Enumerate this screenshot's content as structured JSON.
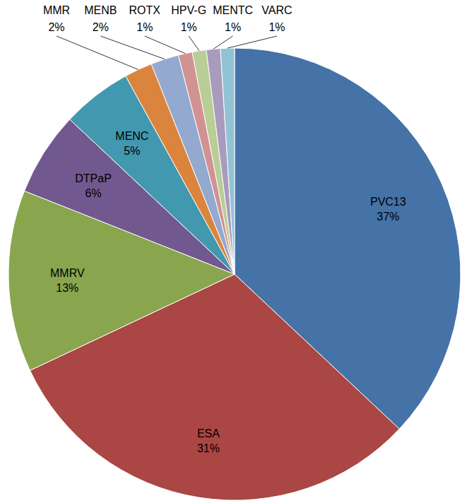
{
  "chart_data": {
    "type": "pie",
    "categories": [
      "PVC13",
      "ESA",
      "MMRV",
      "DTPaP",
      "MENC",
      "MMR",
      "MENB",
      "ROTX",
      "HPV-G",
      "MENTC",
      "VARC"
    ],
    "values": [
      37,
      31,
      13,
      6,
      5,
      2,
      2,
      1,
      1,
      1,
      1
    ],
    "value_labels": [
      "37%",
      "31%",
      "13%",
      "6%",
      "5%",
      "2%",
      "2%",
      "1%",
      "1%",
      "1%",
      "1%"
    ],
    "colors": [
      "#4572A7",
      "#AA4643",
      "#89A54E",
      "#71588F",
      "#4198AF",
      "#DB843D",
      "#93A9CF",
      "#D19392",
      "#B9CD96",
      "#A99BBD",
      "#92C3D4"
    ],
    "data_labels": true
  }
}
